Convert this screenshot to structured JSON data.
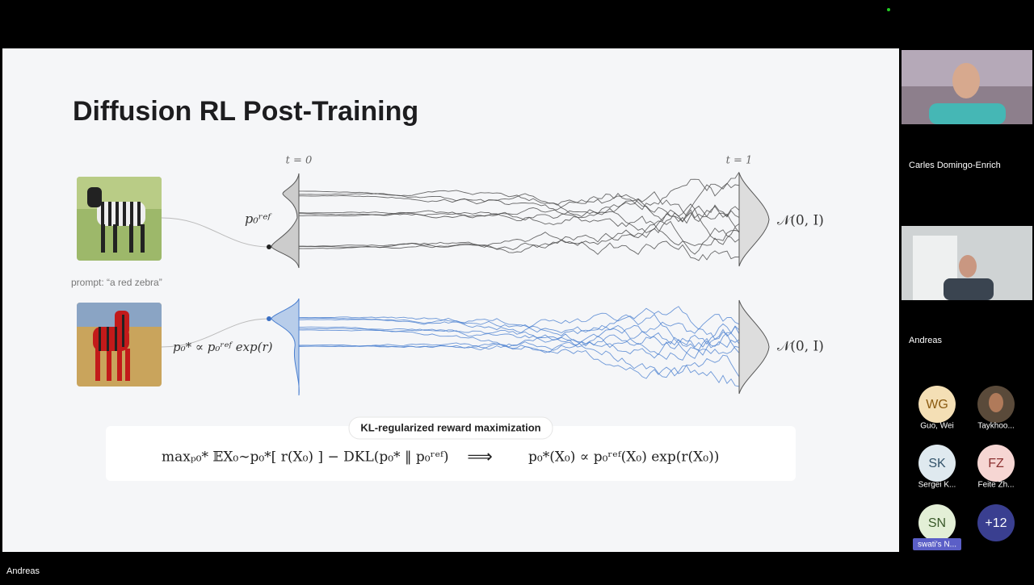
{
  "slide": {
    "title": "Diffusion RL Post-Training",
    "t_start": "t = 0",
    "t_end": "t = 1",
    "prompt": "prompt: “a red zebra”",
    "p_ref": "p₀ʳᵉᶠ",
    "p_star": "p₀* ∝ p₀ʳᵉᶠ exp(r)",
    "normal_top": "𝒩(0, I)",
    "normal_bottom": "𝒩(0, I)",
    "box_label": "KL-regularized reward maximization",
    "objective": "maxₚ₀* 𝔼X₀∼p₀*[ r(X₀) ] − DKL(p₀* ‖ p₀ʳᵉᶠ)",
    "arrow": "⟹",
    "solution": "p₀*(X₀) ∝ p₀ʳᵉᶠ(X₀) exp(r(X₀))"
  },
  "participants": {
    "video_1": "Carles Domingo-Enrich",
    "video_2": "Andreas",
    "tiles": [
      {
        "initials": "WG",
        "name": "Guo, Wei"
      },
      {
        "initials": "",
        "name": "Taykhoo..."
      },
      {
        "initials": "SK",
        "name": "Sergei K..."
      },
      {
        "initials": "FZ",
        "name": "Feite Zh..."
      },
      {
        "initials": "SN",
        "name": "swati's N..."
      },
      {
        "initials": "+12",
        "name": ""
      }
    ]
  },
  "footer": {
    "speaker": "Andreas"
  }
}
